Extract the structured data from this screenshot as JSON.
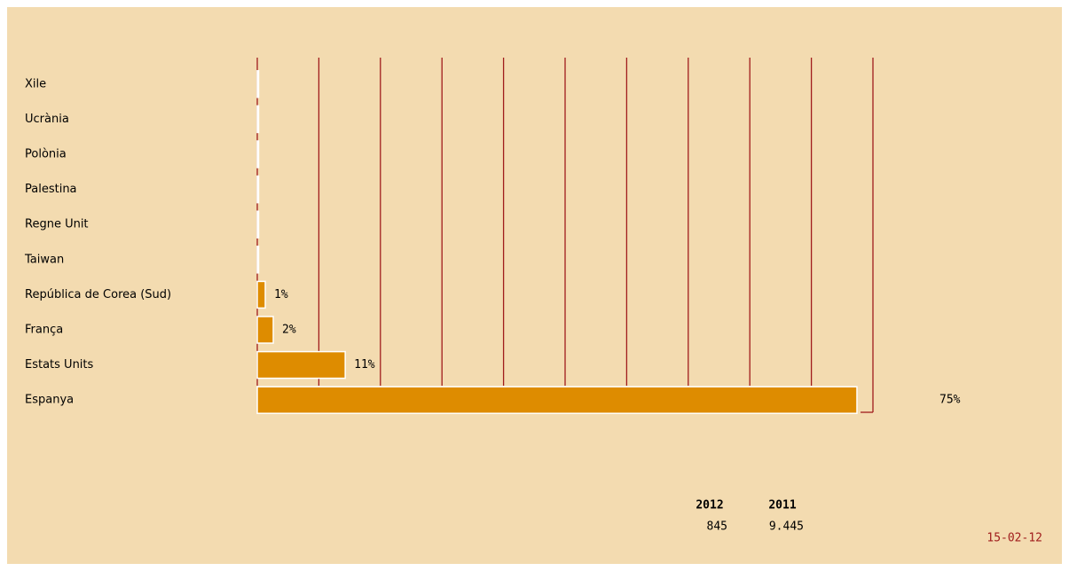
{
  "chart_data": {
    "type": "bar",
    "orientation": "horizontal",
    "categories": [
      "Xile",
      "Ucrània",
      "Polònia",
      "Palestina",
      "Regne Unit",
      "Taiwan",
      "República de Corea (Sud)",
      "França",
      "Estats Units",
      "Espanya"
    ],
    "values": [
      0,
      0,
      0,
      0,
      0,
      0,
      1,
      2,
      11,
      75
    ],
    "value_labels": [
      null,
      null,
      null,
      null,
      null,
      null,
      "1%",
      "2%",
      "11%",
      "75%"
    ],
    "color": "#de8c00",
    "xlim": [
      0,
      77
    ],
    "xticks": [
      0,
      7.7,
      15.4,
      23.1,
      30.8,
      38.5,
      46.2,
      53.9,
      61.6,
      69.3,
      77
    ],
    "grid": true,
    "table": {
      "headers": [
        "2012",
        "2011"
      ],
      "values": [
        845,
        {
          "value": 9445,
          "label": "9.445"
        }
      ]
    },
    "date": "15-02-12"
  }
}
